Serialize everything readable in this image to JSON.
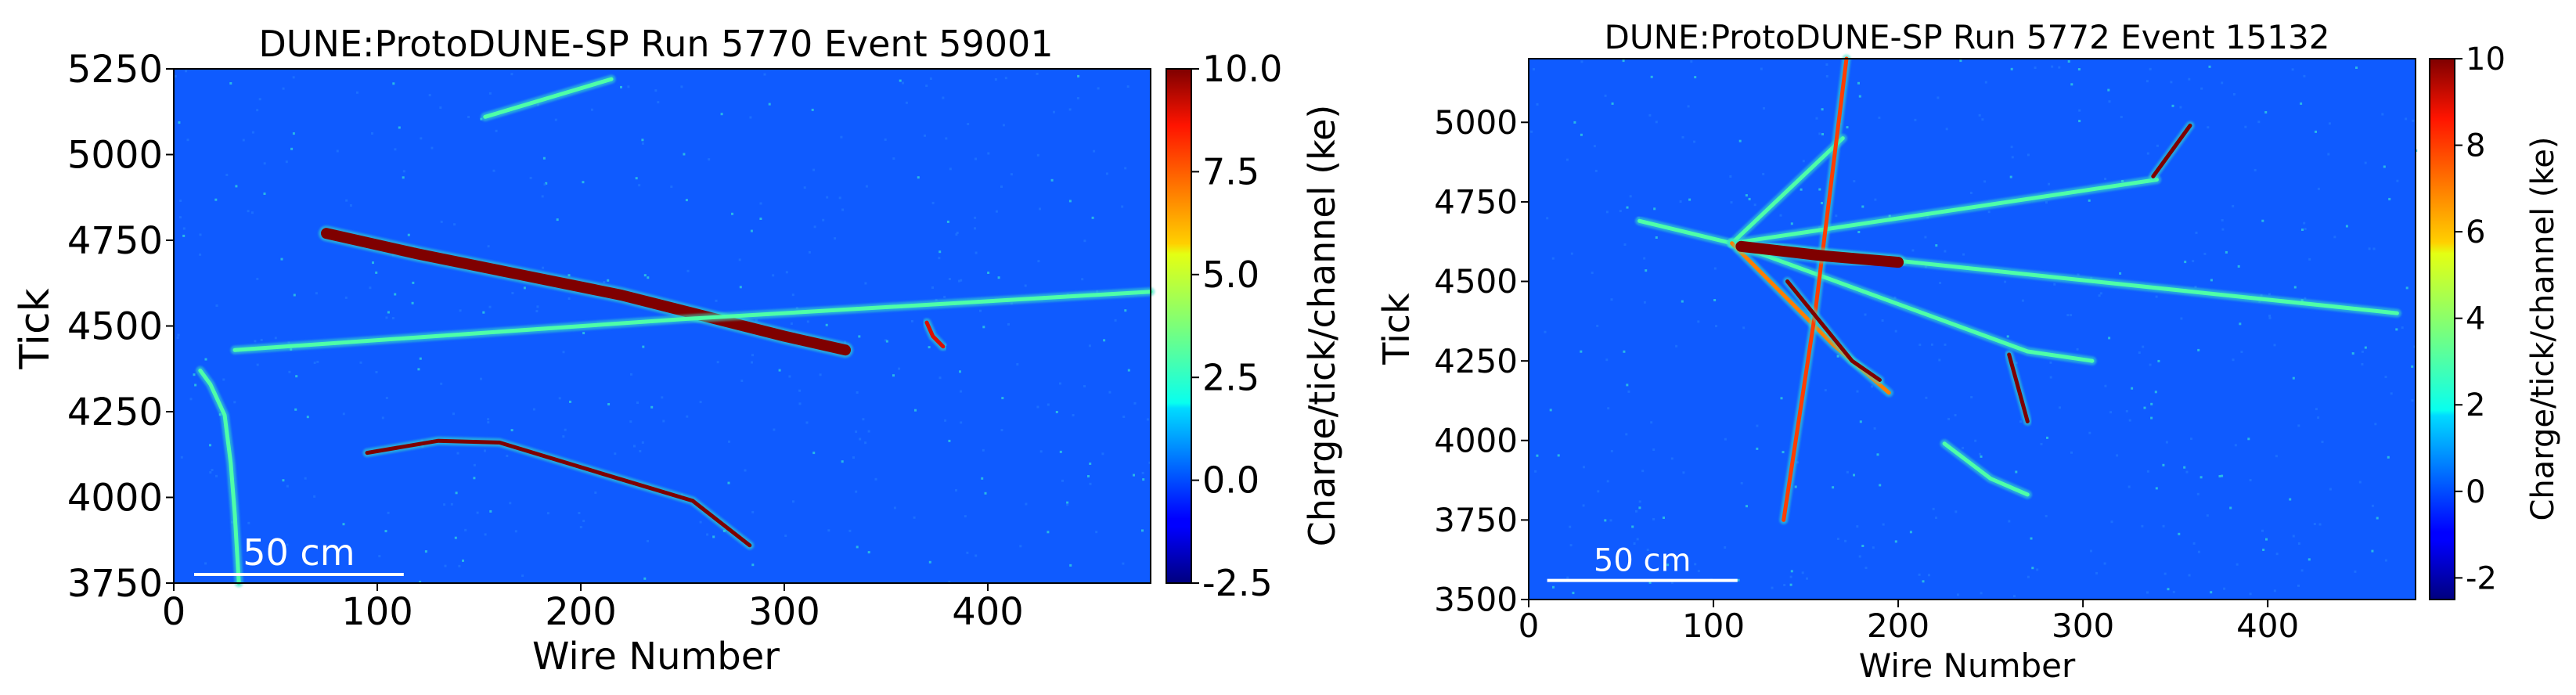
{
  "chart_data": [
    {
      "type": "heatmap",
      "title": "DUNE:ProtoDUNE-SP Run 5770 Event 59001",
      "xlabel": "Wire Number",
      "ylabel": "Tick",
      "xlim": [
        0,
        480
      ],
      "ylim": [
        3750,
        5250
      ],
      "xticks": [
        0,
        100,
        200,
        300,
        400
      ],
      "yticks": [
        3750,
        4000,
        4250,
        4500,
        4750,
        5000,
        5250
      ],
      "colorbar": {
        "label": "Charge/tick/channel (ke)",
        "range": [
          -2.5,
          10.0
        ],
        "ticks": [
          "10.0",
          "7.5",
          "5.0",
          "2.5",
          "0.0",
          "-2.5"
        ],
        "tick_values": [
          10.0,
          7.5,
          5.0,
          2.5,
          0.0,
          -2.5
        ]
      },
      "scale_bar": {
        "label": "50 cm",
        "x_range": [
          10,
          113
        ],
        "y": 3775
      },
      "grid": false,
      "tracks": [
        {
          "kind": "shower",
          "points": [
            [
              75,
              4770
            ],
            [
              120,
              4710
            ],
            [
              170,
              4650
            ],
            [
              220,
              4590
            ],
            [
              260,
              4530
            ],
            [
              300,
              4470
            ],
            [
              330,
              4430
            ]
          ],
          "max_charge": 10
        },
        {
          "kind": "track",
          "points": [
            [
              30,
              4430
            ],
            [
              250,
              4520
            ],
            [
              480,
              4600
            ]
          ],
          "max_charge": 3
        },
        {
          "kind": "track",
          "points": [
            [
              95,
              4130
            ],
            [
              130,
              4165
            ],
            [
              160,
              4160
            ],
            [
              210,
              4070
            ],
            [
              255,
              3990
            ],
            [
              283,
              3860
            ]
          ],
          "max_charge": 10
        },
        {
          "kind": "track",
          "points": [
            [
              153,
              5110
            ],
            [
              215,
              5220
            ]
          ],
          "max_charge": 3
        },
        {
          "kind": "track",
          "points": [
            [
              13,
              4370
            ],
            [
              18,
              4330
            ],
            [
              25,
              4240
            ],
            [
              28,
              4100
            ],
            [
              30,
              3950
            ],
            [
              32,
              3750
            ]
          ],
          "max_charge": 3
        },
        {
          "kind": "track",
          "points": [
            [
              370,
              4510
            ],
            [
              373,
              4470
            ],
            [
              378,
              4440
            ]
          ],
          "max_charge": 9
        }
      ]
    },
    {
      "type": "heatmap",
      "title": "DUNE:ProtoDUNE-SP Run 5772 Event 15132",
      "xlabel": "Wire Number",
      "ylabel": "Tick",
      "xlim": [
        0,
        480
      ],
      "ylim": [
        3500,
        5200
      ],
      "xticks": [
        0,
        100,
        200,
        300,
        400
      ],
      "yticks": [
        3500,
        3750,
        4000,
        4250,
        4500,
        4750,
        5000
      ],
      "colorbar": {
        "label": "Charge/tick/channel (ke)",
        "range": [
          -2.5,
          10
        ],
        "ticks": [
          "10",
          "8",
          "6",
          "4",
          "2",
          "0",
          "-2"
        ],
        "tick_values": [
          10,
          8,
          6,
          4,
          2,
          0,
          -2
        ]
      },
      "scale_bar": {
        "label": "50 cm",
        "x_range": [
          10,
          113
        ],
        "y": 3560
      },
      "grid": false,
      "tracks": [
        {
          "kind": "track",
          "points": [
            [
              60,
              4690
            ],
            [
              110,
              4620
            ]
          ],
          "max_charge": 3
        },
        {
          "kind": "track",
          "points": [
            [
              110,
              4620
            ],
            [
              340,
              4820
            ]
          ],
          "max_charge": 3
        },
        {
          "kind": "track",
          "points": [
            [
              110,
              4620
            ],
            [
              470,
              4400
            ]
          ],
          "max_charge": 3
        },
        {
          "kind": "track",
          "points": [
            [
              110,
              4620
            ],
            [
              170,
              4950
            ]
          ],
          "max_charge": 3
        },
        {
          "kind": "track",
          "points": [
            [
              110,
              4620
            ],
            [
              270,
              4280
            ],
            [
              305,
              4250
            ]
          ],
          "max_charge": 3
        },
        {
          "kind": "track",
          "points": [
            [
              110,
              4620
            ],
            [
              165,
              4300
            ],
            [
              195,
              4150
            ]
          ],
          "max_charge": 7
        },
        {
          "kind": "track",
          "points": [
            [
              138,
              3750
            ],
            [
              155,
              4400
            ],
            [
              172,
              5200
            ]
          ],
          "max_charge": 8
        },
        {
          "kind": "shower",
          "points": [
            [
              115,
              4610
            ],
            [
              160,
              4580
            ],
            [
              200,
              4560
            ]
          ],
          "max_charge": 10
        },
        {
          "kind": "track",
          "points": [
            [
              140,
              4500
            ],
            [
              175,
              4250
            ],
            [
              190,
              4190
            ]
          ],
          "max_charge": 10
        },
        {
          "kind": "track",
          "points": [
            [
              338,
              4830
            ],
            [
              358,
              4990
            ]
          ],
          "max_charge": 10
        },
        {
          "kind": "track",
          "points": [
            [
              260,
              4270
            ],
            [
              270,
              4060
            ]
          ],
          "max_charge": 10
        },
        {
          "kind": "track",
          "points": [
            [
              225,
              3990
            ],
            [
              250,
              3880
            ],
            [
              270,
              3830
            ]
          ],
          "max_charge": 3
        }
      ]
    }
  ]
}
